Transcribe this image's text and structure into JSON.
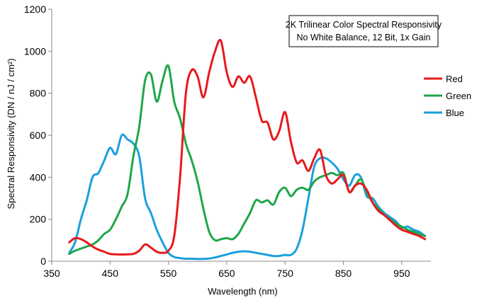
{
  "chart_data": {
    "type": "line",
    "title_lines": [
      "2K Trilinear Color Spectral Responsivity",
      "No White Balance, 12 Bit, 1x Gain"
    ],
    "xlabel": "Wavelength (nm)",
    "ylabel": "Spectral Responsivity (DN / nJ / cm²)",
    "xlim": [
      350,
      1000
    ],
    "ylim": [
      0,
      1200
    ],
    "xticks": [
      350,
      450,
      550,
      650,
      750,
      850,
      950
    ],
    "yticks": [
      0,
      200,
      400,
      600,
      800,
      1000,
      1200
    ],
    "grid": false,
    "legend_position": "right",
    "series": [
      {
        "name": "Red",
        "color": "#e8191c",
        "points": [
          [
            380,
            90
          ],
          [
            390,
            110
          ],
          [
            400,
            105
          ],
          [
            410,
            90
          ],
          [
            420,
            70
          ],
          [
            430,
            55
          ],
          [
            440,
            45
          ],
          [
            450,
            35
          ],
          [
            460,
            33
          ],
          [
            470,
            32
          ],
          [
            480,
            33
          ],
          [
            490,
            35
          ],
          [
            500,
            50
          ],
          [
            510,
            80
          ],
          [
            520,
            65
          ],
          [
            530,
            45
          ],
          [
            540,
            40
          ],
          [
            550,
            50
          ],
          [
            560,
            120
          ],
          [
            570,
            400
          ],
          [
            580,
            800
          ],
          [
            590,
            910
          ],
          [
            600,
            880
          ],
          [
            610,
            780
          ],
          [
            620,
            900
          ],
          [
            630,
            1000
          ],
          [
            640,
            1050
          ],
          [
            650,
            900
          ],
          [
            660,
            830
          ],
          [
            670,
            880
          ],
          [
            680,
            850
          ],
          [
            690,
            880
          ],
          [
            700,
            780
          ],
          [
            710,
            670
          ],
          [
            720,
            660
          ],
          [
            730,
            580
          ],
          [
            740,
            620
          ],
          [
            750,
            710
          ],
          [
            760,
            570
          ],
          [
            770,
            470
          ],
          [
            780,
            480
          ],
          [
            790,
            430
          ],
          [
            800,
            490
          ],
          [
            810,
            530
          ],
          [
            820,
            410
          ],
          [
            830,
            370
          ],
          [
            840,
            390
          ],
          [
            850,
            410
          ],
          [
            860,
            330
          ],
          [
            870,
            360
          ],
          [
            880,
            370
          ],
          [
            890,
            340
          ],
          [
            900,
            280
          ],
          [
            910,
            240
          ],
          [
            920,
            220
          ],
          [
            930,
            195
          ],
          [
            940,
            170
          ],
          [
            950,
            150
          ],
          [
            960,
            140
          ],
          [
            970,
            130
          ],
          [
            980,
            120
          ],
          [
            990,
            105
          ]
        ]
      },
      {
        "name": "Green",
        "color": "#1fa64a",
        "points": [
          [
            380,
            35
          ],
          [
            390,
            50
          ],
          [
            400,
            60
          ],
          [
            410,
            70
          ],
          [
            420,
            80
          ],
          [
            430,
            100
          ],
          [
            440,
            130
          ],
          [
            450,
            150
          ],
          [
            460,
            200
          ],
          [
            470,
            260
          ],
          [
            480,
            320
          ],
          [
            490,
            500
          ],
          [
            500,
            640
          ],
          [
            510,
            860
          ],
          [
            520,
            890
          ],
          [
            530,
            760
          ],
          [
            540,
            860
          ],
          [
            550,
            930
          ],
          [
            560,
            760
          ],
          [
            570,
            680
          ],
          [
            580,
            560
          ],
          [
            590,
            480
          ],
          [
            600,
            380
          ],
          [
            610,
            250
          ],
          [
            620,
            140
          ],
          [
            630,
            100
          ],
          [
            640,
            105
          ],
          [
            650,
            110
          ],
          [
            660,
            105
          ],
          [
            670,
            130
          ],
          [
            680,
            180
          ],
          [
            690,
            230
          ],
          [
            700,
            290
          ],
          [
            710,
            280
          ],
          [
            720,
            290
          ],
          [
            730,
            270
          ],
          [
            740,
            330
          ],
          [
            750,
            350
          ],
          [
            760,
            310
          ],
          [
            770,
            340
          ],
          [
            780,
            350
          ],
          [
            790,
            340
          ],
          [
            800,
            380
          ],
          [
            810,
            400
          ],
          [
            820,
            410
          ],
          [
            830,
            420
          ],
          [
            840,
            410
          ],
          [
            850,
            420
          ],
          [
            860,
            330
          ],
          [
            870,
            360
          ],
          [
            880,
            390
          ],
          [
            890,
            330
          ],
          [
            900,
            280
          ],
          [
            910,
            250
          ],
          [
            920,
            220
          ],
          [
            930,
            200
          ],
          [
            940,
            180
          ],
          [
            950,
            165
          ],
          [
            960,
            150
          ],
          [
            970,
            140
          ],
          [
            980,
            130
          ],
          [
            990,
            120
          ]
        ]
      },
      {
        "name": "Blue",
        "color": "#1aa0dc",
        "points": [
          [
            380,
            40
          ],
          [
            390,
            90
          ],
          [
            400,
            200
          ],
          [
            410,
            290
          ],
          [
            420,
            400
          ],
          [
            430,
            420
          ],
          [
            440,
            480
          ],
          [
            450,
            540
          ],
          [
            460,
            510
          ],
          [
            470,
            600
          ],
          [
            480,
            580
          ],
          [
            490,
            560
          ],
          [
            500,
            500
          ],
          [
            510,
            300
          ],
          [
            520,
            230
          ],
          [
            530,
            150
          ],
          [
            540,
            90
          ],
          [
            550,
            40
          ],
          [
            560,
            20
          ],
          [
            570,
            15
          ],
          [
            580,
            12
          ],
          [
            590,
            12
          ],
          [
            600,
            11
          ],
          [
            610,
            11
          ],
          [
            620,
            13
          ],
          [
            630,
            18
          ],
          [
            640,
            25
          ],
          [
            650,
            32
          ],
          [
            660,
            40
          ],
          [
            670,
            45
          ],
          [
            680,
            47
          ],
          [
            690,
            45
          ],
          [
            700,
            40
          ],
          [
            710,
            35
          ],
          [
            720,
            30
          ],
          [
            730,
            25
          ],
          [
            740,
            25
          ],
          [
            750,
            30
          ],
          [
            760,
            30
          ],
          [
            770,
            60
          ],
          [
            780,
            150
          ],
          [
            790,
            300
          ],
          [
            800,
            450
          ],
          [
            810,
            490
          ],
          [
            820,
            490
          ],
          [
            830,
            470
          ],
          [
            840,
            440
          ],
          [
            850,
            390
          ],
          [
            860,
            360
          ],
          [
            870,
            410
          ],
          [
            880,
            400
          ],
          [
            890,
            310
          ],
          [
            900,
            300
          ],
          [
            910,
            260
          ],
          [
            920,
            230
          ],
          [
            930,
            210
          ],
          [
            940,
            190
          ],
          [
            950,
            160
          ],
          [
            960,
            165
          ],
          [
            970,
            150
          ],
          [
            980,
            140
          ],
          [
            990,
            120
          ]
        ]
      }
    ]
  }
}
